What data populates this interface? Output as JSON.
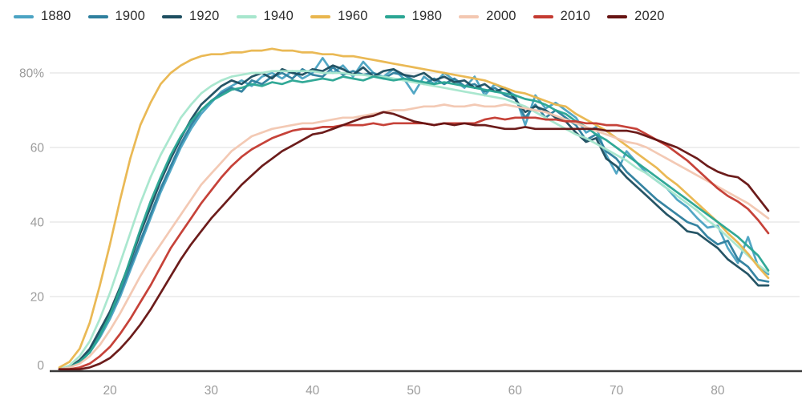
{
  "styles": {
    "background": "#ffffff",
    "grid_color": "#e4e4e4",
    "axis_color": "#3a3a3a",
    "tick_text_color": "#9b9b9b",
    "legend_text_color": "#2d2d2d"
  },
  "chart_data": {
    "type": "line",
    "legend_position": "top",
    "grid": true,
    "xlim": [
      15,
      85
    ],
    "ylim": [
      0,
      88
    ],
    "xticks": [
      20,
      30,
      40,
      50,
      60,
      70,
      80
    ],
    "yticks": [
      {
        "value": 80,
        "label": "80%"
      },
      {
        "value": 60,
        "label": "60"
      },
      {
        "value": 40,
        "label": "40"
      },
      {
        "value": 20,
        "label": "20"
      },
      {
        "value": 0,
        "label": "0"
      }
    ],
    "ages": [
      15,
      16,
      17,
      18,
      19,
      20,
      21,
      22,
      23,
      24,
      25,
      26,
      27,
      28,
      29,
      30,
      31,
      32,
      33,
      34,
      35,
      36,
      37,
      38,
      39,
      40,
      41,
      42,
      43,
      44,
      45,
      46,
      47,
      48,
      49,
      50,
      51,
      52,
      53,
      54,
      55,
      56,
      57,
      58,
      59,
      60,
      61,
      62,
      63,
      64,
      65,
      66,
      67,
      68,
      69,
      70,
      71,
      72,
      73,
      74,
      75,
      76,
      77,
      78,
      79,
      80,
      81,
      82,
      83,
      84,
      85
    ],
    "series": [
      {
        "name": "1880",
        "color": "#4BA3C3",
        "values": [
          0.5,
          1,
          2.5,
          5,
          9,
          14,
          20,
          27,
          34,
          41,
          48,
          54,
          60,
          65,
          69,
          72,
          75,
          76.5,
          78,
          76.5,
          79,
          80,
          78.5,
          80.5,
          78.5,
          80,
          84,
          80,
          82,
          79,
          83,
          80,
          79,
          81,
          78.5,
          74.5,
          79,
          77,
          80,
          78,
          76,
          79,
          74,
          77,
          75.5,
          74,
          66,
          74,
          70.5,
          72,
          70,
          68,
          64,
          65.5,
          58,
          53,
          59,
          56,
          53,
          51,
          49,
          46,
          44,
          41,
          38.5,
          39,
          33,
          29,
          36,
          28,
          26
        ]
      },
      {
        "name": "1900",
        "color": "#2E7F9E",
        "values": [
          0.5,
          1,
          2.5,
          5.5,
          10,
          15,
          21,
          28,
          35,
          42,
          49,
          55,
          61,
          66,
          70,
          72.5,
          74.5,
          76,
          75,
          78,
          77,
          79,
          80,
          78.5,
          81,
          79.5,
          79,
          81.5,
          79.5,
          80.5,
          79.5,
          80,
          78.5,
          80,
          79.5,
          78,
          77,
          78.5,
          77,
          78.5,
          76.5,
          77,
          75,
          76,
          74,
          73,
          68,
          71.5,
          68,
          70,
          68,
          66,
          62,
          63.5,
          59,
          57,
          53.5,
          51,
          48.5,
          46,
          44,
          42,
          40,
          39,
          36,
          34,
          35,
          30,
          28,
          24.5,
          24
        ]
      },
      {
        "name": "1920",
        "color": "#1D4E60",
        "values": [
          0.5,
          1,
          3,
          6,
          11,
          16,
          22.5,
          29.5,
          37,
          44,
          51,
          57,
          62.5,
          67.5,
          71.5,
          74,
          76.5,
          78,
          77,
          79,
          80,
          78.5,
          81,
          80,
          79.5,
          81,
          80.5,
          82,
          81,
          79.5,
          81.5,
          79,
          80.5,
          81,
          79.5,
          79,
          80,
          78,
          79,
          77.5,
          78,
          76,
          77,
          75,
          76,
          73,
          69.5,
          71,
          70,
          68,
          67,
          64,
          61.5,
          62.5,
          57,
          55,
          52,
          49.5,
          47,
          44.5,
          42,
          40,
          37.5,
          37,
          35,
          33,
          30,
          28,
          26,
          23,
          23
        ]
      },
      {
        "name": "1940",
        "color": "#A7E6CD",
        "values": [
          0.5,
          1.5,
          4,
          8,
          14,
          21,
          29,
          37,
          45,
          52,
          58,
          63,
          68,
          71.5,
          74.5,
          76.5,
          78,
          79,
          79.5,
          80,
          80,
          80.5,
          80.5,
          80.5,
          80.5,
          80.5,
          80,
          80,
          80,
          79.5,
          79.5,
          79,
          79,
          78.5,
          78,
          77.5,
          77,
          76.5,
          76,
          75.5,
          75,
          74.5,
          74,
          73.5,
          73,
          72,
          71,
          69.5,
          68,
          66.5,
          65,
          63.5,
          62.5,
          61,
          59.5,
          58,
          56.5,
          54.5,
          53,
          51,
          49,
          47,
          45,
          43,
          40.5,
          38.5,
          36,
          33.5,
          31,
          28.5,
          26.5
        ]
      },
      {
        "name": "1960",
        "color": "#E9B64E",
        "values": [
          1,
          2.5,
          6,
          13,
          23,
          34,
          46,
          57,
          66,
          72,
          77,
          80,
          82,
          83.5,
          84.5,
          85,
          85,
          85.5,
          85.5,
          86,
          86,
          86.5,
          86,
          86,
          85.5,
          85.5,
          85,
          85,
          84.5,
          84.5,
          84,
          83.5,
          83,
          82.5,
          82,
          81.5,
          81,
          80.5,
          80,
          79.5,
          79,
          78.5,
          78,
          77,
          76,
          75,
          74.5,
          73.5,
          72.5,
          71.5,
          71,
          69,
          67.5,
          66,
          64.5,
          62.5,
          60.5,
          58.5,
          56.5,
          54.5,
          52,
          50,
          47.5,
          45,
          42.5,
          40,
          37,
          34.5,
          31.5,
          28,
          25
        ]
      },
      {
        "name": "1980",
        "color": "#2AA593",
        "values": [
          0.5,
          1,
          2.5,
          5,
          9.5,
          15,
          22,
          30,
          38,
          45.5,
          52,
          58,
          63,
          67,
          70,
          72.5,
          74,
          75.5,
          76,
          77,
          76.5,
          77.5,
          77,
          78,
          77.5,
          78,
          78.5,
          78,
          79,
          78.5,
          78,
          79,
          78.5,
          78,
          78.5,
          78,
          77.5,
          77,
          77.5,
          77,
          76.5,
          76,
          75.5,
          75,
          74.5,
          74,
          73,
          72.5,
          71.5,
          70,
          69,
          67,
          65.5,
          63.5,
          62,
          60,
          58,
          56,
          54,
          52,
          50,
          48,
          46,
          44,
          42,
          40,
          38,
          36,
          33.5,
          31,
          27
        ]
      },
      {
        "name": "2000",
        "color": "#F3C7B1",
        "values": [
          0.5,
          1,
          2,
          4,
          7,
          11,
          15.5,
          20.5,
          25.5,
          30,
          34,
          38,
          42,
          46,
          50,
          53,
          56,
          59,
          61,
          63,
          64,
          65,
          65.5,
          66,
          66.5,
          66.5,
          67,
          67.5,
          68,
          68,
          68.5,
          69,
          69.5,
          70,
          70,
          70.5,
          71,
          71,
          71.5,
          71,
          71,
          71.5,
          71,
          71,
          71.5,
          71,
          70.5,
          70,
          69.5,
          68.5,
          67.5,
          66.5,
          65.5,
          64.5,
          63.5,
          62.5,
          61.5,
          61,
          60,
          58.5,
          57,
          55.5,
          54,
          52.5,
          51,
          49.5,
          48,
          46.5,
          45,
          43,
          41
        ]
      },
      {
        "name": "2010",
        "color": "#C43A31",
        "values": [
          0.5,
          0.5,
          1,
          2,
          4,
          6.5,
          10,
          14,
          18.5,
          23,
          28,
          33,
          37,
          41,
          45,
          48.5,
          52,
          55,
          57.5,
          59.5,
          61,
          62.5,
          63.5,
          64.5,
          65,
          65,
          65.5,
          65.5,
          66,
          66,
          66,
          66.5,
          66,
          66.5,
          66.5,
          66.5,
          66.5,
          66,
          66.5,
          66.5,
          66.5,
          66.5,
          67.5,
          68,
          67.5,
          68,
          68,
          68,
          67.5,
          67.5,
          67,
          67,
          66.5,
          66.5,
          66,
          66,
          65.5,
          65,
          63.5,
          62,
          60.5,
          58.5,
          56.5,
          54,
          51.5,
          49,
          47,
          45.5,
          43.5,
          40.5,
          37
        ]
      },
      {
        "name": "2020",
        "color": "#661312",
        "values": [
          0.5,
          0.5,
          0.5,
          1,
          2,
          3.5,
          6,
          9,
          12.5,
          16.5,
          21,
          25.5,
          30,
          34,
          37.5,
          41,
          44,
          47,
          50,
          52.5,
          55,
          57,
          59,
          60.5,
          62,
          63.5,
          64,
          65,
          66,
          67,
          68,
          68.5,
          69.5,
          69,
          68,
          67,
          66.5,
          66,
          66.5,
          66,
          66.5,
          66,
          66,
          65.5,
          65,
          65,
          65.5,
          65,
          65,
          65,
          65,
          65,
          65,
          65,
          64.5,
          64.5,
          64.5,
          64,
          63,
          62,
          61,
          60,
          58.5,
          57,
          55,
          53.5,
          52.5,
          52,
          50,
          46.5,
          43
        ]
      }
    ]
  }
}
